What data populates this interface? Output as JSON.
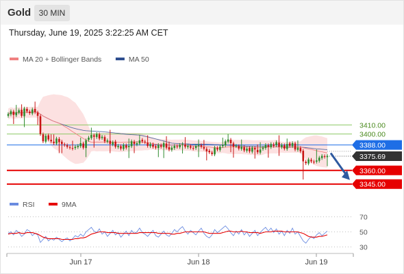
{
  "header": {
    "title": "Gold",
    "timeframe": "30 MIN",
    "timestamp": "Thursday, June 19, 2025 3:22:25 AM CET"
  },
  "colors": {
    "bollinger_fill": "#fbdcdc",
    "ma20": "#f08080",
    "ma50": "#2e4e8f",
    "candle_up": "#2e8b2e",
    "candle_down": "#c81414",
    "resistance": "#8cc864",
    "pivot": "#1e6ee6",
    "support": "#e60000",
    "price_tag": "#333333",
    "rsi": "#6a8be0",
    "rsi_ma": "#e60000"
  },
  "chart_data": [
    {
      "type": "candlestick",
      "legend": [
        {
          "name": "MA 20 + Bollinger Bands",
          "color": "#f08080"
        },
        {
          "name": "MA 50",
          "color": "#2e4e8f"
        }
      ],
      "ylim": [
        3335,
        3472
      ],
      "x_ticks": [
        "Jun 17",
        "Jun 18",
        "Jun 19"
      ],
      "levels": [
        {
          "label": "3410.00",
          "value": 3410,
          "kind": "resistance"
        },
        {
          "label": "3400.00",
          "value": 3400,
          "kind": "resistance"
        },
        {
          "label": "3388.00",
          "value": 3388,
          "kind": "pivot"
        },
        {
          "label": "3375.69",
          "value": 3375.69,
          "kind": "current"
        },
        {
          "label": "3360.00",
          "value": 3360,
          "kind": "support"
        },
        {
          "label": "3345.00",
          "value": 3345,
          "kind": "support"
        }
      ],
      "forecast_arrow": {
        "from": 3376,
        "to": 3348,
        "direction": "down"
      },
      "close": [
        3422,
        3425,
        3421,
        3424,
        3426,
        3420,
        3428,
        3425,
        3423,
        3427,
        3424,
        3420,
        3400,
        3392,
        3398,
        3394,
        3392,
        3390,
        3395,
        3391,
        3389,
        3388,
        3386,
        3385,
        3384,
        3386,
        3387,
        3390,
        3385,
        3393,
        3396,
        3399,
        3397,
        3400,
        3395,
        3397,
        3392,
        3393,
        3389,
        3391,
        3386,
        3387,
        3384,
        3388,
        3385,
        3387,
        3392,
        3389,
        3390,
        3393,
        3392,
        3391,
        3387,
        3389,
        3386,
        3385,
        3388,
        3386,
        3390,
        3385,
        3383,
        3385,
        3387,
        3386,
        3388,
        3389,
        3386,
        3387,
        3385,
        3384,
        3387,
        3388,
        3386,
        3384,
        3381,
        3380,
        3378,
        3385,
        3383,
        3386,
        3388,
        3392,
        3394,
        3390,
        3386,
        3387,
        3384,
        3386,
        3382,
        3384,
        3381,
        3385,
        3383,
        3380,
        3383,
        3385,
        3388,
        3386,
        3389,
        3387,
        3391,
        3386,
        3388,
        3384,
        3389,
        3387,
        3390,
        3383,
        3385,
        3381,
        3370,
        3368,
        3372,
        3370,
        3369,
        3371,
        3374,
        3376,
        3375,
        3376
      ]
    },
    {
      "type": "line",
      "legend": [
        {
          "name": "RSI",
          "color": "#6a8be0"
        },
        {
          "name": "9MA",
          "color": "#e60000"
        }
      ],
      "ylim": [
        25,
        75
      ],
      "y_ticks": [
        70,
        50,
        30
      ],
      "series": [
        {
          "name": "RSI",
          "values": [
            48,
            50,
            46,
            52,
            49,
            44,
            47,
            53,
            51,
            45,
            48,
            46,
            36,
            40,
            44,
            38,
            41,
            39,
            43,
            40,
            37,
            40,
            42,
            38,
            41,
            45,
            43,
            47,
            44,
            50,
            53,
            56,
            51,
            49,
            54,
            47,
            50,
            44,
            48,
            52,
            46,
            49,
            43,
            47,
            51,
            45,
            52,
            48,
            50,
            55,
            49,
            47,
            44,
            48,
            52,
            45,
            43,
            47,
            51,
            46,
            44,
            48,
            53,
            50,
            54,
            57,
            51,
            47,
            52,
            49,
            46,
            51,
            55,
            48,
            44,
            42,
            46,
            53,
            49,
            52,
            55,
            58,
            54,
            49,
            45,
            51,
            47,
            53,
            46,
            50,
            44,
            48,
            52,
            45,
            49,
            53,
            56,
            51,
            55,
            49,
            54,
            47,
            51,
            45,
            52,
            48,
            55,
            47,
            50,
            44,
            38,
            35,
            40,
            44,
            41,
            46,
            49,
            45,
            48,
            51
          ]
        },
        {
          "name": "9MA",
          "values": [
            47,
            48,
            48,
            48,
            49,
            48,
            48,
            49,
            49,
            49,
            48,
            47,
            45,
            43,
            42,
            41,
            41,
            41,
            41,
            41,
            40,
            40,
            40,
            40,
            40,
            41,
            41,
            42,
            42,
            43,
            45,
            47,
            48,
            49,
            50,
            50,
            50,
            49,
            49,
            49,
            49,
            48,
            48,
            48,
            48,
            48,
            48,
            48,
            48,
            49,
            49,
            49,
            49,
            49,
            49,
            49,
            48,
            48,
            48,
            48,
            48,
            47,
            47,
            48,
            48,
            49,
            50,
            50,
            50,
            50,
            50,
            50,
            50,
            50,
            49,
            48,
            48,
            48,
            48,
            48,
            49,
            50,
            51,
            51,
            50,
            50,
            50,
            51,
            50,
            50,
            49,
            49,
            49,
            49,
            48,
            49,
            50,
            50,
            50,
            51,
            51,
            51,
            51,
            50,
            50,
            50,
            50,
            50,
            50,
            49,
            48,
            46,
            44,
            43,
            43,
            43,
            44,
            44,
            45,
            46
          ]
        }
      ]
    }
  ]
}
